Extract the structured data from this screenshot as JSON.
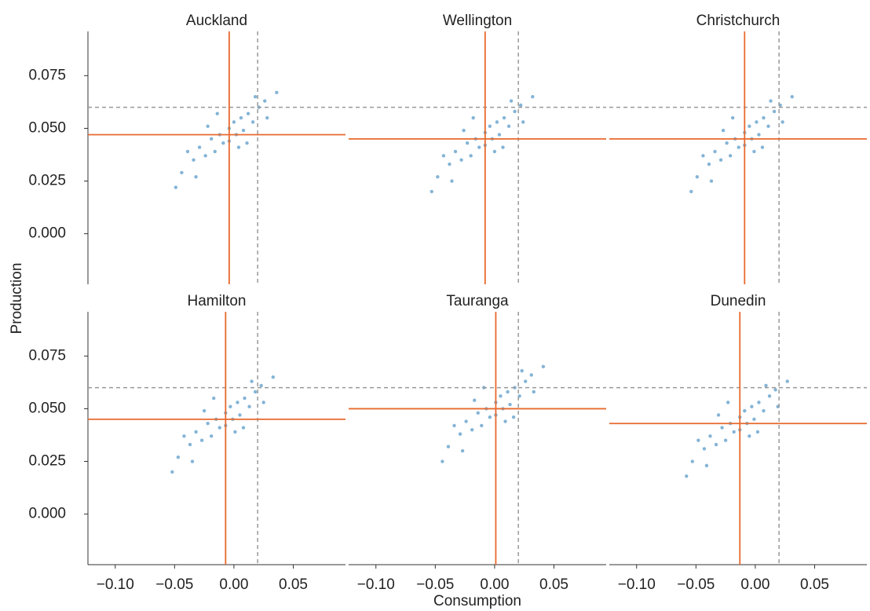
{
  "chart_data": {
    "type": "scatter",
    "xlabel": "Consumption",
    "ylabel": "Production",
    "color": "#1f77b4",
    "line_color": "#e8692e",
    "ref_color": "#999999",
    "xlim": [
      -0.123,
      0.094
    ],
    "ylim": [
      -0.024,
      0.096
    ],
    "xticks": [
      {
        "value": -0.1,
        "label": "−0.10"
      },
      {
        "value": -0.05,
        "label": "−0.05"
      },
      {
        "value": 0,
        "label": "0.00"
      },
      {
        "value": 0.05,
        "label": "0.05"
      }
    ],
    "yticks": [
      {
        "value": 0,
        "label": "0.000"
      },
      {
        "value": 0.025,
        "label": "0.025"
      },
      {
        "value": 0.05,
        "label": "0.050"
      },
      {
        "value": 0.075,
        "label": "0.075"
      }
    ],
    "ref_x": 0.02,
    "ref_y": 0.06,
    "panels": [
      {
        "title": "Auckland",
        "mean_x": -0.004,
        "mean_y": 0.047,
        "x": [
          -0.044,
          -0.034,
          -0.029,
          -0.024,
          -0.019,
          -0.016,
          -0.012,
          -0.009,
          -0.004,
          -0.004,
          0.0,
          0.002,
          0.006,
          0.008,
          0.012,
          0.016,
          0.021,
          0.026,
          -0.039,
          -0.022,
          0.004,
          0.018,
          -0.049,
          0.036,
          -0.014,
          0.011,
          -0.032,
          0.028
        ],
        "y": [
          0.029,
          0.035,
          0.041,
          0.037,
          0.045,
          0.039,
          0.047,
          0.043,
          0.05,
          0.044,
          0.053,
          0.047,
          0.055,
          0.049,
          0.057,
          0.053,
          0.06,
          0.063,
          0.039,
          0.051,
          0.041,
          0.065,
          0.022,
          0.067,
          0.057,
          0.043,
          0.027,
          0.055
        ]
      },
      {
        "title": "Wellington",
        "mean_x": -0.008,
        "mean_y": 0.045,
        "x": [
          -0.048,
          -0.038,
          -0.033,
          -0.028,
          -0.023,
          -0.02,
          -0.016,
          -0.013,
          -0.008,
          -0.008,
          -0.004,
          -0.002,
          0.002,
          0.004,
          0.008,
          0.012,
          0.017,
          0.022,
          -0.043,
          -0.026,
          0.0,
          0.014,
          -0.053,
          0.032,
          -0.018,
          0.007,
          -0.036,
          0.024
        ],
        "y": [
          0.027,
          0.033,
          0.039,
          0.035,
          0.043,
          0.037,
          0.045,
          0.041,
          0.048,
          0.042,
          0.051,
          0.045,
          0.053,
          0.047,
          0.055,
          0.051,
          0.058,
          0.061,
          0.037,
          0.049,
          0.039,
          0.063,
          0.02,
          0.065,
          0.055,
          0.041,
          0.025,
          0.053
        ]
      },
      {
        "title": "Christchurch",
        "mean_x": -0.009,
        "mean_y": 0.045,
        "x": [
          -0.049,
          -0.039,
          -0.034,
          -0.029,
          -0.024,
          -0.021,
          -0.017,
          -0.014,
          -0.009,
          -0.009,
          -0.005,
          -0.003,
          0.001,
          0.003,
          0.007,
          0.011,
          0.016,
          0.021,
          -0.044,
          -0.027,
          -0.001,
          0.013,
          -0.054,
          0.031,
          -0.019,
          0.006,
          -0.037,
          0.023
        ],
        "y": [
          0.027,
          0.033,
          0.039,
          0.035,
          0.043,
          0.037,
          0.045,
          0.041,
          0.048,
          0.042,
          0.051,
          0.045,
          0.053,
          0.047,
          0.055,
          0.051,
          0.058,
          0.061,
          0.037,
          0.049,
          0.039,
          0.063,
          0.02,
          0.065,
          0.055,
          0.041,
          0.025,
          0.053
        ]
      },
      {
        "title": "Hamilton",
        "mean_x": -0.007,
        "mean_y": 0.045,
        "x": [
          -0.047,
          -0.037,
          -0.032,
          -0.027,
          -0.022,
          -0.019,
          -0.015,
          -0.012,
          -0.007,
          -0.007,
          -0.003,
          -0.001,
          0.003,
          0.005,
          0.009,
          0.013,
          0.018,
          0.023,
          -0.042,
          -0.025,
          0.001,
          0.015,
          -0.052,
          0.033,
          -0.017,
          0.008,
          -0.035,
          0.025
        ],
        "y": [
          0.027,
          0.033,
          0.039,
          0.035,
          0.043,
          0.037,
          0.045,
          0.041,
          0.048,
          0.042,
          0.051,
          0.045,
          0.053,
          0.047,
          0.055,
          0.051,
          0.058,
          0.061,
          0.037,
          0.049,
          0.039,
          0.063,
          0.02,
          0.065,
          0.055,
          0.041,
          0.025,
          0.053
        ]
      },
      {
        "title": "Tauranga",
        "mean_x": 0.001,
        "mean_y": 0.05,
        "x": [
          -0.039,
          -0.029,
          -0.024,
          -0.019,
          -0.014,
          -0.011,
          -0.007,
          -0.004,
          0.001,
          0.001,
          0.005,
          0.007,
          0.011,
          0.013,
          0.017,
          0.021,
          0.026,
          0.031,
          -0.034,
          -0.017,
          0.009,
          0.023,
          -0.044,
          0.041,
          -0.009,
          0.016,
          -0.027,
          0.033
        ],
        "y": [
          0.032,
          0.038,
          0.044,
          0.04,
          0.048,
          0.042,
          0.05,
          0.046,
          0.053,
          0.047,
          0.056,
          0.05,
          0.058,
          0.052,
          0.06,
          0.056,
          0.063,
          0.066,
          0.042,
          0.054,
          0.044,
          0.068,
          0.025,
          0.07,
          0.06,
          0.046,
          0.03,
          0.058
        ]
      },
      {
        "title": "Dunedin",
        "mean_x": -0.013,
        "mean_y": 0.043,
        "x": [
          -0.053,
          -0.043,
          -0.038,
          -0.033,
          -0.028,
          -0.025,
          -0.021,
          -0.018,
          -0.013,
          -0.013,
          -0.009,
          -0.007,
          -0.003,
          -0.001,
          0.003,
          0.007,
          0.012,
          0.017,
          -0.048,
          -0.031,
          -0.005,
          0.009,
          -0.058,
          0.027,
          -0.023,
          0.002,
          -0.041,
          0.019
        ],
        "y": [
          0.025,
          0.031,
          0.037,
          0.033,
          0.041,
          0.035,
          0.043,
          0.039,
          0.046,
          0.04,
          0.049,
          0.043,
          0.051,
          0.045,
          0.053,
          0.049,
          0.056,
          0.059,
          0.035,
          0.047,
          0.037,
          0.061,
          0.018,
          0.063,
          0.053,
          0.039,
          0.023,
          0.051
        ]
      }
    ]
  }
}
